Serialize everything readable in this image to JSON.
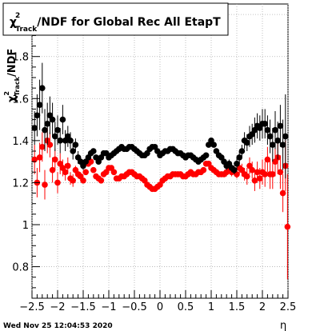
{
  "header": {
    "title_chi": "χ",
    "title_sup": "2",
    "title_sub": "Track",
    "title_rest": "/NDF for Global Rec All EtapT"
  },
  "footer": {
    "timestamp": "Wed Nov 25 12:04:53 2020"
  },
  "chart_data": {
    "type": "scatter",
    "title": "χ²_Track/NDF for Global Rec All EtapT",
    "xlabel": "η",
    "ylabel": "χ²_Track/NDF",
    "xlim": [
      -2.5,
      2.5
    ],
    "ylim": [
      0.65,
      2.05
    ],
    "xticks": [
      -2.5,
      -2,
      -1.5,
      -1,
      -0.5,
      0,
      0.5,
      1,
      1.5,
      2,
      2.5
    ],
    "xtick_labels": [
      "−2.5",
      "−2",
      "−1.5",
      "−1",
      "−0.5",
      "0",
      "0.5",
      "1",
      "1.5",
      "2",
      "2.5"
    ],
    "yticks": [
      0.8,
      1,
      1.2,
      1.4,
      1.6,
      1.8,
      2
    ],
    "ytick_labels": [
      "0.8",
      "1",
      "1.2",
      "1.4",
      "1.6",
      "1.8",
      "2"
    ],
    "grid": true,
    "series": [
      {
        "color": "#000000",
        "x": [
          -2.45,
          -2.4,
          -2.35,
          -2.3,
          -2.25,
          -2.2,
          -2.15,
          -2.1,
          -2.05,
          -2.0,
          -1.95,
          -1.9,
          -1.85,
          -1.8,
          -1.75,
          -1.7,
          -1.65,
          -1.6,
          -1.55,
          -1.5,
          -1.45,
          -1.4,
          -1.35,
          -1.3,
          -1.25,
          -1.2,
          -1.15,
          -1.1,
          -1.05,
          -1.0,
          -0.95,
          -0.9,
          -0.85,
          -0.8,
          -0.75,
          -0.7,
          -0.65,
          -0.6,
          -0.55,
          -0.5,
          -0.45,
          -0.4,
          -0.35,
          -0.3,
          -0.25,
          -0.2,
          -0.15,
          -0.1,
          -0.05,
          0.0,
          0.05,
          0.1,
          0.15,
          0.2,
          0.25,
          0.3,
          0.35,
          0.4,
          0.45,
          0.5,
          0.55,
          0.6,
          0.65,
          0.7,
          0.75,
          0.8,
          0.85,
          0.9,
          0.95,
          1.0,
          1.05,
          1.1,
          1.15,
          1.2,
          1.25,
          1.3,
          1.35,
          1.4,
          1.45,
          1.5,
          1.55,
          1.6,
          1.65,
          1.7,
          1.75,
          1.8,
          1.85,
          1.9,
          1.95,
          2.0,
          2.05,
          2.1,
          2.15,
          2.2,
          2.25,
          2.3,
          2.35,
          2.4,
          2.45
        ],
        "y": [
          1.46,
          1.52,
          1.57,
          1.65,
          1.45,
          1.48,
          1.52,
          1.5,
          1.42,
          1.45,
          1.4,
          1.5,
          1.4,
          1.42,
          1.4,
          1.35,
          1.38,
          1.32,
          1.3,
          1.28,
          1.3,
          1.32,
          1.34,
          1.35,
          1.32,
          1.3,
          1.32,
          1.34,
          1.34,
          1.32,
          1.33,
          1.34,
          1.35,
          1.36,
          1.37,
          1.36,
          1.36,
          1.37,
          1.37,
          1.36,
          1.35,
          1.34,
          1.33,
          1.33,
          1.34,
          1.36,
          1.37,
          1.37,
          1.35,
          1.33,
          1.34,
          1.35,
          1.35,
          1.36,
          1.36,
          1.35,
          1.34,
          1.34,
          1.33,
          1.32,
          1.33,
          1.33,
          1.32,
          1.31,
          1.3,
          1.31,
          1.32,
          1.33,
          1.38,
          1.4,
          1.38,
          1.35,
          1.33,
          1.32,
          1.3,
          1.28,
          1.29,
          1.27,
          1.26,
          1.29,
          1.32,
          1.35,
          1.4,
          1.39,
          1.42,
          1.43,
          1.45,
          1.47,
          1.46,
          1.48,
          1.48,
          1.45,
          1.42,
          1.38,
          1.45,
          1.4,
          1.47,
          1.38,
          1.42
        ],
        "err": [
          0.08,
          0.1,
          0.12,
          0.12,
          0.1,
          0.1,
          0.09,
          0.08,
          0.07,
          0.07,
          0.06,
          0.07,
          0.05,
          0.05,
          0.04,
          0.04,
          0.03,
          0.03,
          0.02,
          0.02,
          0.01,
          0.01,
          0.01,
          0.01,
          0.01,
          0.01,
          0.01,
          0.01,
          0.01,
          0.01,
          0.01,
          0.01,
          0.01,
          0.01,
          0.01,
          0.01,
          0.01,
          0.01,
          0.01,
          0.01,
          0.01,
          0.01,
          0.01,
          0.01,
          0.01,
          0.01,
          0.01,
          0.01,
          0.01,
          0.01,
          0.01,
          0.01,
          0.01,
          0.01,
          0.01,
          0.01,
          0.01,
          0.01,
          0.01,
          0.01,
          0.01,
          0.01,
          0.01,
          0.01,
          0.01,
          0.01,
          0.01,
          0.01,
          0.01,
          0.01,
          0.01,
          0.01,
          0.01,
          0.01,
          0.01,
          0.02,
          0.02,
          0.02,
          0.02,
          0.03,
          0.03,
          0.03,
          0.04,
          0.04,
          0.05,
          0.05,
          0.06,
          0.06,
          0.06,
          0.07,
          0.07,
          0.07,
          0.08,
          0.08,
          0.09,
          0.09,
          0.1,
          0.12,
          0.2
        ]
      },
      {
        "color": "#ff0000",
        "x": [
          -2.45,
          -2.4,
          -2.35,
          -2.3,
          -2.25,
          -2.2,
          -2.15,
          -2.1,
          -2.05,
          -2.0,
          -1.95,
          -1.9,
          -1.85,
          -1.8,
          -1.75,
          -1.7,
          -1.65,
          -1.6,
          -1.55,
          -1.5,
          -1.45,
          -1.4,
          -1.35,
          -1.3,
          -1.25,
          -1.2,
          -1.15,
          -1.1,
          -1.05,
          -1.0,
          -0.95,
          -0.9,
          -0.85,
          -0.8,
          -0.75,
          -0.7,
          -0.65,
          -0.6,
          -0.55,
          -0.5,
          -0.45,
          -0.4,
          -0.35,
          -0.3,
          -0.25,
          -0.2,
          -0.15,
          -0.1,
          -0.05,
          0.0,
          0.05,
          0.1,
          0.15,
          0.2,
          0.25,
          0.3,
          0.35,
          0.4,
          0.45,
          0.5,
          0.55,
          0.6,
          0.65,
          0.7,
          0.75,
          0.8,
          0.85,
          0.9,
          0.95,
          1.0,
          1.05,
          1.1,
          1.15,
          1.2,
          1.25,
          1.3,
          1.35,
          1.4,
          1.45,
          1.5,
          1.55,
          1.6,
          1.65,
          1.7,
          1.75,
          1.8,
          1.85,
          1.9,
          1.95,
          2.0,
          2.05,
          2.1,
          2.15,
          2.2,
          2.25,
          2.3,
          2.35,
          2.4,
          2.45,
          2.49
        ],
        "y": [
          1.31,
          1.2,
          1.32,
          1.37,
          1.19,
          1.4,
          1.38,
          1.26,
          1.31,
          1.2,
          1.29,
          1.27,
          1.25,
          1.28,
          1.22,
          1.21,
          1.26,
          1.24,
          1.23,
          1.21,
          1.25,
          1.29,
          1.3,
          1.26,
          1.23,
          1.22,
          1.21,
          1.24,
          1.25,
          1.27,
          1.27,
          1.25,
          1.22,
          1.22,
          1.23,
          1.23,
          1.24,
          1.25,
          1.25,
          1.24,
          1.23,
          1.23,
          1.22,
          1.21,
          1.19,
          1.18,
          1.17,
          1.17,
          1.18,
          1.19,
          1.21,
          1.22,
          1.23,
          1.23,
          1.24,
          1.24,
          1.24,
          1.24,
          1.23,
          1.23,
          1.24,
          1.25,
          1.24,
          1.24,
          1.25,
          1.25,
          1.26,
          1.29,
          1.29,
          1.27,
          1.26,
          1.25,
          1.24,
          1.24,
          1.24,
          1.25,
          1.27,
          1.25,
          1.26,
          1.24,
          1.27,
          1.26,
          1.24,
          1.23,
          1.28,
          1.26,
          1.21,
          1.25,
          1.22,
          1.25,
          1.24,
          1.31,
          1.24,
          1.24,
          1.3,
          1.32,
          1.25,
          1.15,
          1.28,
          0.99
        ],
        "err": [
          0.07,
          0.07,
          0.07,
          0.07,
          0.07,
          0.06,
          0.06,
          0.06,
          0.05,
          0.05,
          0.05,
          0.04,
          0.04,
          0.04,
          0.03,
          0.03,
          0.02,
          0.02,
          0.02,
          0.01,
          0.01,
          0.01,
          0.01,
          0.01,
          0.01,
          0.01,
          0.01,
          0.01,
          0.01,
          0.01,
          0.01,
          0.01,
          0.01,
          0.01,
          0.01,
          0.01,
          0.01,
          0.01,
          0.01,
          0.01,
          0.01,
          0.01,
          0.01,
          0.01,
          0.01,
          0.01,
          0.01,
          0.01,
          0.01,
          0.01,
          0.01,
          0.01,
          0.01,
          0.01,
          0.01,
          0.01,
          0.01,
          0.01,
          0.01,
          0.01,
          0.01,
          0.01,
          0.01,
          0.01,
          0.01,
          0.01,
          0.01,
          0.01,
          0.01,
          0.01,
          0.01,
          0.01,
          0.01,
          0.01,
          0.01,
          0.02,
          0.02,
          0.02,
          0.02,
          0.02,
          0.03,
          0.03,
          0.03,
          0.04,
          0.04,
          0.04,
          0.05,
          0.05,
          0.05,
          0.06,
          0.06,
          0.06,
          0.07,
          0.07,
          0.07,
          0.08,
          0.08,
          0.09,
          0.12,
          0.25
        ]
      }
    ]
  }
}
